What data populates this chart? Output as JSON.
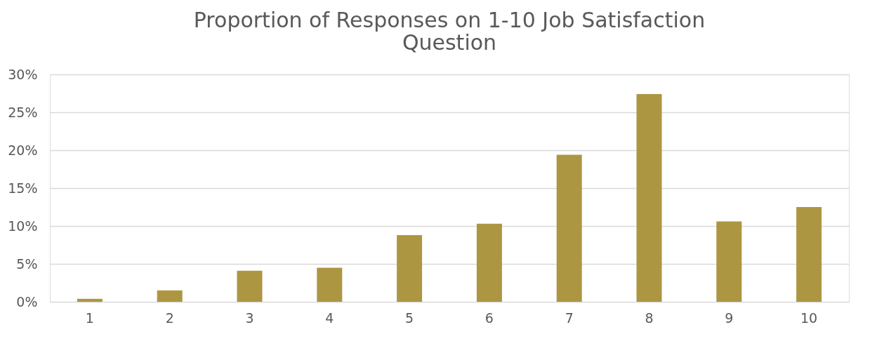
{
  "chart_data": {
    "type": "bar",
    "title": "Proportion of Responses on 1-10 Job Satisfaction Question",
    "categories": [
      "1",
      "2",
      "3",
      "4",
      "5",
      "6",
      "7",
      "8",
      "9",
      "10"
    ],
    "values": [
      0.4,
      1.5,
      4.1,
      4.5,
      8.8,
      10.3,
      19.4,
      27.4,
      10.6,
      12.5
    ],
    "color": "#ad9642",
    "ylim": [
      0,
      30
    ],
    "yticks": [
      {
        "value": 0,
        "label": "0%"
      },
      {
        "value": 5,
        "label": "5%"
      },
      {
        "value": 10,
        "label": "10%"
      },
      {
        "value": 15,
        "label": "15%"
      },
      {
        "value": 20,
        "label": "20%"
      },
      {
        "value": 25,
        "label": "25%"
      },
      {
        "value": 30,
        "label": "30%"
      }
    ],
    "grid": "y"
  }
}
